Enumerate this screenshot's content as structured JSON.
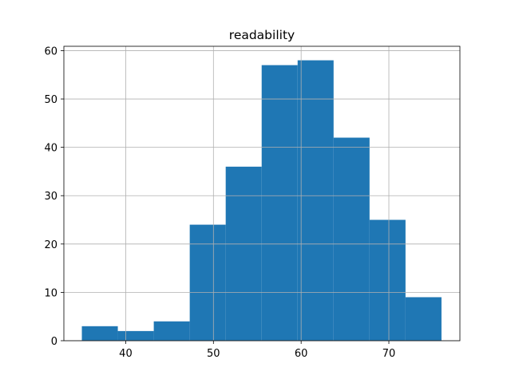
{
  "chart_data": {
    "type": "histogram",
    "title": "readability",
    "bins": [
      35,
      39.1,
      43.2,
      47.3,
      51.4,
      55.5,
      59.6,
      63.7,
      67.8,
      71.9,
      76
    ],
    "values": [
      3,
      2,
      4,
      24,
      36,
      57,
      58,
      42,
      25,
      9
    ],
    "color": "#1f77b4",
    "xlim": [
      32.95,
      78.1
    ],
    "xticks": [
      40,
      50,
      60,
      70
    ],
    "ylim": [
      0,
      60.9
    ],
    "yticks": [
      0,
      10,
      20,
      30,
      40,
      50,
      60
    ],
    "grid": true
  }
}
